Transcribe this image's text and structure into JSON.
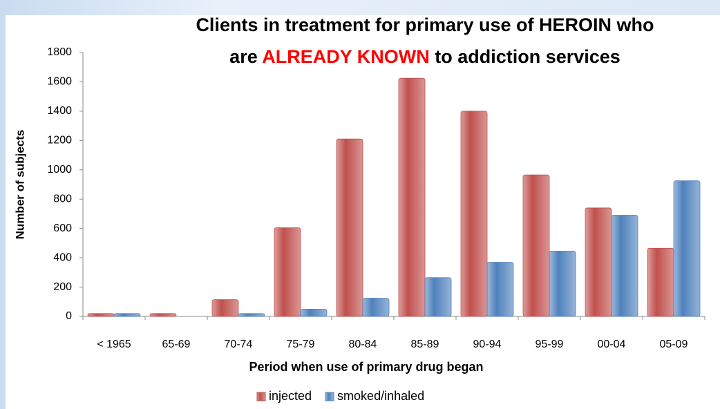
{
  "chart_data": {
    "type": "bar",
    "title": [
      [
        {
          "text": "Clients in treatment for primary use of HEROIN who",
          "color": "#000000"
        }
      ],
      [
        {
          "text": "are ",
          "color": "#000000"
        },
        {
          "text": "ALREADY KNOWN",
          "color": "#ff0000"
        },
        {
          "text": " to addiction services",
          "color": "#000000"
        }
      ]
    ],
    "x_label": "Period when use of primary drug began",
    "y_label": "Number of subjects",
    "categories": [
      "< 1965",
      "65-69",
      "70-74",
      "75-79",
      "80-84",
      "85-89",
      "90-94",
      "95-99",
      "00-04",
      "05-09"
    ],
    "series": [
      {
        "name": "injected",
        "color": "#c0504d",
        "values": [
          20,
          20,
          115,
          605,
          1210,
          1625,
          1400,
          965,
          740,
          465
        ]
      },
      {
        "name": "smoked/inhaled",
        "color": "#4f81bd",
        "values": [
          20,
          0,
          20,
          50,
          125,
          265,
          370,
          445,
          690,
          925
        ]
      }
    ],
    "ylim": [
      0,
      1800
    ],
    "yticks": [
      0,
      200,
      400,
      600,
      800,
      1000,
      1200,
      1400,
      1600,
      1800
    ],
    "legend": "bottom"
  }
}
